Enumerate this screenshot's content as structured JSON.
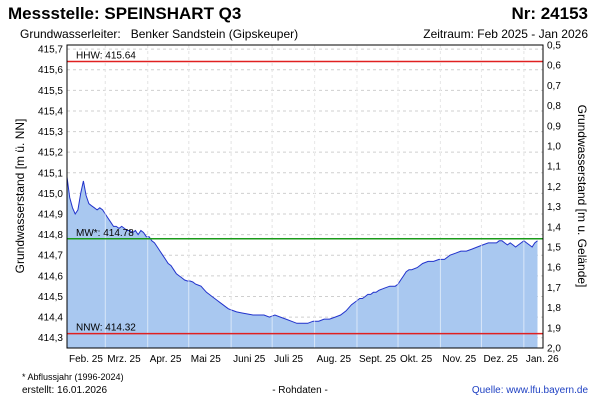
{
  "header": {
    "title": "Messstelle: SPEINSHART Q3",
    "nr": "Nr: 24153",
    "aquifer_label": "Grundwasserleiter:",
    "aquifer_value": "Benker Sandstein (Gipskeuper)",
    "period": "Zeitraum: Feb 2025 - Jan 2026"
  },
  "footer": {
    "footnote": "* Abflussjahr (1996-2024)",
    "created": "erstellt:  16.01.2026",
    "raw": "- Rohdaten -",
    "source": "Quelle:  www.lfu.bayern.de"
  },
  "colors": {
    "area_fill": "#a9c8f0",
    "line": "#2233cc",
    "hhw_nnw": "#e02020",
    "mw": "#1a9a1a",
    "grid": "#cfcfcf"
  },
  "chart_data": {
    "type": "area",
    "ylabel": "Grundwasserstand [m ü. NN]",
    "ylabel_right": "Grundwasserstand [m u. Gelände]",
    "ylim": [
      414.25,
      415.72
    ],
    "ylim_right": [
      2.0,
      0.5
    ],
    "yticks": [
      "414,3",
      "414,4",
      "414,5",
      "414,6",
      "414,7",
      "414,8",
      "414,9",
      "415,0",
      "415,1",
      "415,2",
      "415,3",
      "415,4",
      "415,5",
      "415,6",
      "415,7"
    ],
    "yticks_right": [
      "0,5",
      "0,6",
      "0,7",
      "0,8",
      "0,9",
      "1,0",
      "1,1",
      "1,2",
      "1,3",
      "1,4",
      "1,5",
      "1,6",
      "1,7",
      "1,8",
      "1,9",
      "2,0"
    ],
    "xlim_days": [
      0,
      348
    ],
    "x_ticks": [
      {
        "label": "Feb. 25",
        "day": 0
      },
      {
        "label": "Mrz. 25",
        "day": 28
      },
      {
        "label": "Apr. 25",
        "day": 59
      },
      {
        "label": "Mai 25",
        "day": 89
      },
      {
        "label": "Juni 25",
        "day": 120
      },
      {
        "label": "Juli 25",
        "day": 150
      },
      {
        "label": "Aug. 25",
        "day": 181
      },
      {
        "label": "Sept. 25",
        "day": 212
      },
      {
        "label": "Okt. 25",
        "day": 242
      },
      {
        "label": "Nov. 25",
        "day": 273
      },
      {
        "label": "Dez. 25",
        "day": 303
      },
      {
        "label": "Jan. 26",
        "day": 334
      }
    ],
    "reference_lines": [
      {
        "label": "HHW: 415.64",
        "value": 415.64,
        "color": "#e02020"
      },
      {
        "label": "MW*: 414.78",
        "value": 414.78,
        "color": "#1a9a1a"
      },
      {
        "label": "NNW: 414.32",
        "value": 414.32,
        "color": "#e02020"
      }
    ],
    "series": [
      {
        "x": [
          0,
          2,
          4,
          6,
          8,
          10,
          12,
          14,
          15,
          16,
          18,
          20,
          22,
          24,
          26,
          28,
          30,
          32,
          34,
          36,
          38,
          40,
          42,
          44,
          46,
          48,
          50,
          52,
          54,
          56,
          58,
          60,
          62,
          64,
          66,
          68,
          70,
          72,
          74,
          76,
          78,
          80,
          82,
          84,
          86,
          88,
          90,
          92,
          94,
          96,
          98,
          100,
          102,
          104,
          106,
          108,
          110,
          112,
          114,
          116,
          118,
          120,
          124,
          128,
          132,
          136,
          140,
          144,
          148,
          152,
          156,
          160,
          164,
          168,
          172,
          176,
          180,
          184,
          188,
          192,
          196,
          200,
          204,
          208,
          212,
          214,
          216,
          218,
          220,
          222,
          224,
          226,
          228,
          232,
          236,
          240,
          242,
          244,
          246,
          248,
          250,
          252,
          256,
          260,
          264,
          268,
          272,
          276,
          280,
          284,
          288,
          292,
          296,
          300,
          304,
          308,
          312,
          314,
          316,
          318,
          320,
          322,
          324,
          326,
          328,
          330,
          332,
          334,
          336,
          338,
          340,
          342,
          344
        ],
        "y": [
          415.08,
          414.98,
          414.93,
          414.9,
          414.92,
          415.0,
          415.06,
          414.99,
          414.97,
          414.95,
          414.94,
          414.93,
          414.92,
          414.93,
          414.92,
          414.9,
          414.88,
          414.86,
          414.84,
          414.84,
          414.83,
          414.84,
          414.83,
          414.82,
          414.82,
          414.81,
          414.82,
          414.8,
          414.82,
          414.81,
          414.79,
          414.79,
          414.77,
          414.76,
          414.74,
          414.72,
          414.7,
          414.68,
          414.66,
          414.65,
          414.63,
          414.61,
          414.6,
          414.59,
          414.58,
          414.575,
          414.575,
          414.57,
          414.56,
          414.555,
          414.55,
          414.535,
          414.52,
          414.51,
          414.5,
          414.49,
          414.48,
          414.47,
          414.46,
          414.45,
          414.44,
          414.435,
          414.425,
          414.42,
          414.415,
          414.41,
          414.41,
          414.41,
          414.4,
          414.41,
          414.4,
          414.39,
          414.38,
          414.37,
          414.37,
          414.37,
          414.38,
          414.38,
          414.39,
          414.39,
          414.4,
          414.41,
          414.43,
          414.46,
          414.48,
          414.49,
          414.49,
          414.5,
          414.51,
          414.51,
          414.52,
          414.52,
          414.53,
          414.54,
          414.55,
          414.55,
          414.56,
          414.58,
          414.6,
          414.62,
          414.63,
          414.63,
          414.64,
          414.66,
          414.67,
          414.67,
          414.68,
          414.68,
          414.7,
          414.71,
          414.72,
          414.72,
          414.73,
          414.74,
          414.75,
          414.76,
          414.76,
          414.76,
          414.77,
          414.77,
          414.76,
          414.75,
          414.76,
          414.75,
          414.74,
          414.75,
          414.76,
          414.77,
          414.76,
          414.75,
          414.74,
          414.76,
          414.77
        ]
      }
    ]
  }
}
